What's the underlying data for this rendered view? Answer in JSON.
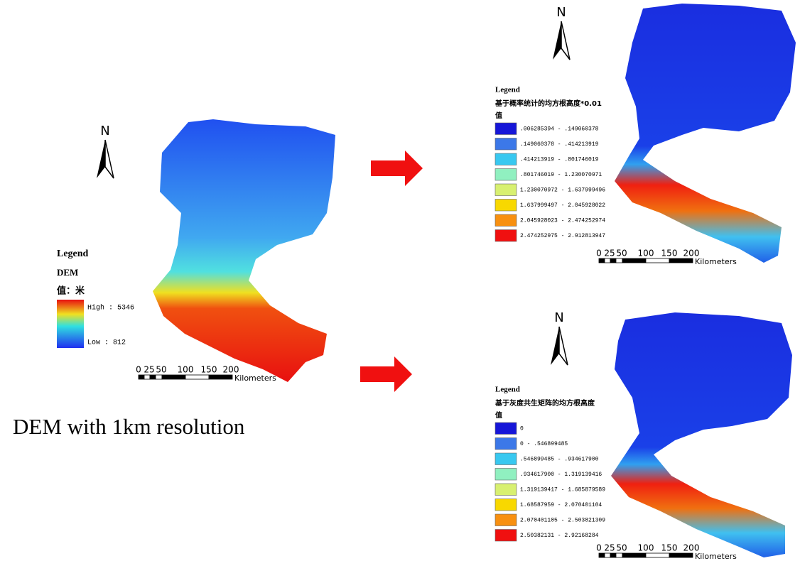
{
  "left_panel": {
    "north": "N",
    "legend": {
      "heading": "Legend",
      "layer": "DEM",
      "field": "值：米",
      "high": "High : 5346",
      "low": "Low : 812"
    },
    "scale": {
      "ticks": [
        0,
        25,
        50,
        100,
        150,
        200
      ],
      "unit": "Kilometers"
    },
    "caption": "DEM with 1km resolution"
  },
  "top_right_panel": {
    "north": "N",
    "legend": {
      "heading": "Legend",
      "layer": "基于概率统计的均方根高度*0.01",
      "field": "值",
      "classes": [
        {
          "label": ".006285394 - .149060378",
          "color": "#1616d8"
        },
        {
          "label": ".149060378 - .414213919",
          "color": "#3c78e8"
        },
        {
          "label": ".414213919 - .801746019",
          "color": "#38c8f0"
        },
        {
          "label": ".801746019 - 1.230070971",
          "color": "#90f0c0"
        },
        {
          "label": "1.230070972 - 1.637999496",
          "color": "#d8f070"
        },
        {
          "label": "1.637999497 - 2.045928022",
          "color": "#f8d800"
        },
        {
          "label": "2.045928023 - 2.474252974",
          "color": "#f89010"
        },
        {
          "label": "2.474252975 - 2.912813947",
          "color": "#f01010"
        }
      ]
    },
    "scale": {
      "ticks": [
        0,
        25,
        50,
        100,
        150,
        200
      ],
      "unit": "Kilometers"
    }
  },
  "bottom_right_panel": {
    "north": "N",
    "legend": {
      "heading": "Legend",
      "layer": "基于灰度共生矩阵的均方根高度",
      "field": "值",
      "classes": [
        {
          "label": "0",
          "color": "#1616d8"
        },
        {
          "label": "0 - .546899485",
          "color": "#3c78e8"
        },
        {
          "label": ".546899485 - .934617900",
          "color": "#38c8f0"
        },
        {
          "label": ".934617900 - 1.319139416",
          "color": "#90f0c0"
        },
        {
          "label": "1.319139417 - 1.685879589",
          "color": "#d8f070"
        },
        {
          "label": "1.68587959 - 2.070401104",
          "color": "#f8d800"
        },
        {
          "label": "2.070401105 - 2.503821309",
          "color": "#f89010"
        },
        {
          "label": "2.50382131 - 2.92168284",
          "color": "#f01010"
        }
      ]
    },
    "scale": {
      "ticks": [
        0,
        25,
        50,
        100,
        150,
        200
      ],
      "unit": "Kilometers"
    }
  }
}
